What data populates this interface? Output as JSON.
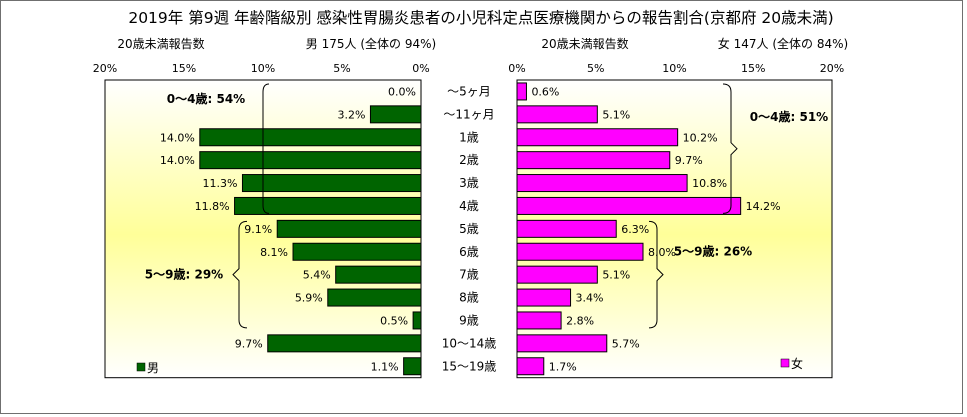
{
  "chart_data": {
    "type": "bar",
    "title": "2019年 第9週 年齢階級別 感染性胃腸炎患者の小児科定点医療機関からの報告割合(京都府 20歳未満)",
    "categories": [
      "～5ヶ月",
      "～11ヶ月",
      "1歳",
      "2歳",
      "3歳",
      "4歳",
      "5歳",
      "6歳",
      "7歳",
      "8歳",
      "9歳",
      "10～14歳",
      "15～19歳"
    ],
    "xlim": [
      0,
      20
    ],
    "ticks": [
      "0%",
      "5%",
      "10%",
      "15%",
      "20%"
    ],
    "grid": false,
    "left_panel": {
      "subtitle_left": "20歳未満報告数",
      "subtitle_right": "男 175人 (全体の 94%)",
      "series": [
        {
          "name": "男",
          "color": "#006400",
          "values": [
            0.0,
            3.2,
            14.0,
            14.0,
            11.3,
            11.8,
            9.1,
            8.1,
            5.4,
            5.9,
            0.5,
            9.7,
            1.1
          ],
          "labels": [
            "0.0%",
            "3.2%",
            "14.0%",
            "14.0%",
            "11.3%",
            "11.8%",
            "9.1%",
            "8.1%",
            "5.4%",
            "5.9%",
            "0.5%",
            "9.7%",
            "1.1%"
          ]
        }
      ],
      "legend": "bottom-left",
      "annotations": [
        "0～4歳: 54%",
        "5～9歳: 29%"
      ]
    },
    "right_panel": {
      "subtitle_left": "20歳未満報告数",
      "subtitle_right": "女 147人 (全体の 84%)",
      "series": [
        {
          "name": "女",
          "color": "#ff00ff",
          "values": [
            0.6,
            5.1,
            10.2,
            9.7,
            10.8,
            14.2,
            6.3,
            8.0,
            5.1,
            3.4,
            2.8,
            5.7,
            1.7
          ],
          "labels": [
            "0.6%",
            "5.1%",
            "10.2%",
            "9.7%",
            "10.8%",
            "14.2%",
            "6.3%",
            "8.0%",
            "5.1%",
            "3.4%",
            "2.8%",
            "5.7%",
            "1.7%"
          ]
        }
      ],
      "legend": "bottom-right",
      "annotations": [
        "0～4歳: 51%",
        "5～9歳: 26%"
      ]
    }
  }
}
